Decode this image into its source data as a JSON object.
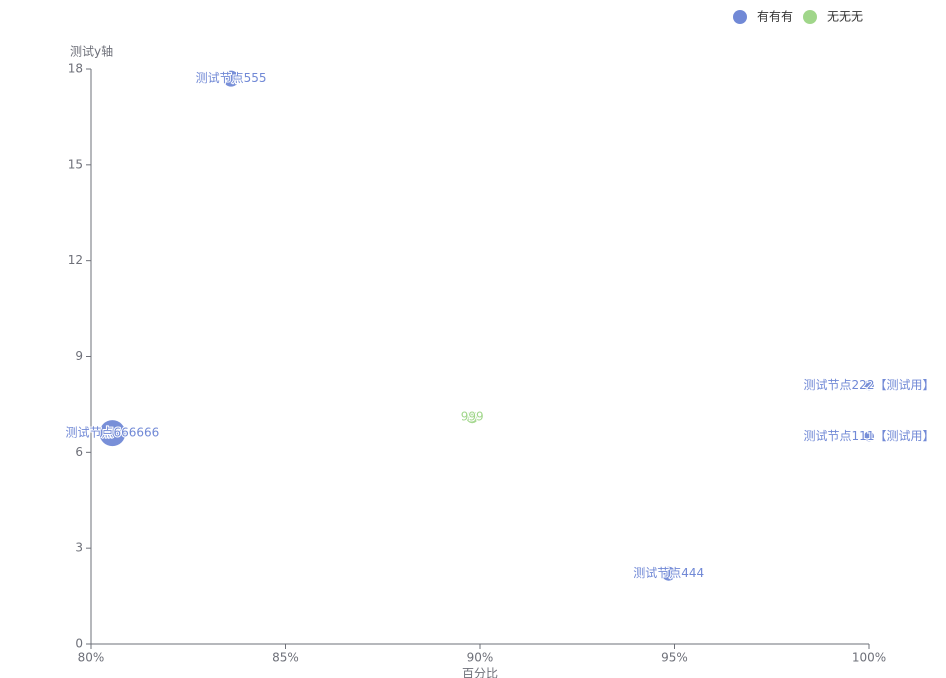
{
  "chart_data": {
    "type": "scatter",
    "x_label": "百分比",
    "y_label": "测试y轴",
    "xlim": [
      80,
      100
    ],
    "xticks": [
      {
        "value": 80,
        "label": "80%"
      },
      {
        "value": 85,
        "label": "85%"
      },
      {
        "value": 90,
        "label": "90%"
      },
      {
        "value": 95,
        "label": "95%"
      },
      {
        "value": 100,
        "label": "100%"
      }
    ],
    "ylim": [
      0,
      18
    ],
    "yticks": [
      0,
      3,
      6,
      9,
      12,
      15,
      18
    ],
    "legend": "top-right",
    "series": [
      {
        "name": "有有有",
        "color": "#7189d6",
        "labels": [
          "测试节点555",
          "测试节点666666",
          "测试节点444",
          "测试节点222【测试用】",
          "测试节点111【测试用】"
        ],
        "x": [
          83.6,
          80.55,
          94.85,
          100,
          100
        ],
        "values": [
          17.7,
          6.6,
          2.2,
          8.1,
          6.5
        ],
        "sizes": [
          8,
          13,
          7,
          5,
          5
        ]
      },
      {
        "name": "无无无",
        "color": "#a0d68a",
        "labels": [
          "999"
        ],
        "x": [
          89.8
        ],
        "values": [
          7.1
        ],
        "sizes": [
          6
        ]
      }
    ]
  }
}
